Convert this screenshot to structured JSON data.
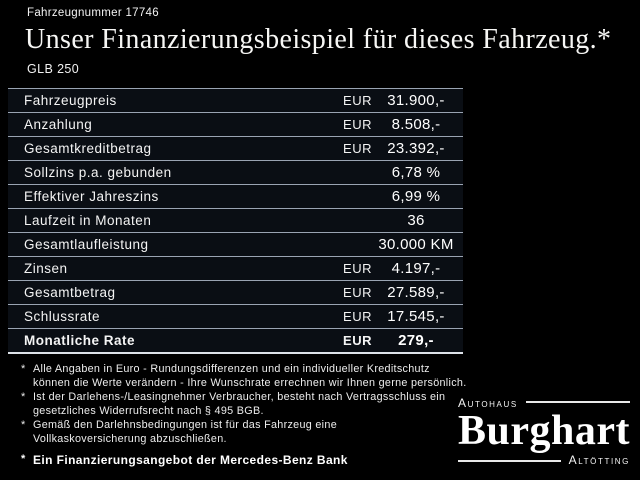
{
  "header": {
    "vehicle_number": "Fahrzeugnummer 17746",
    "title": "Unser Finanzierungsbeispiel für dieses Fahrzeug.*",
    "model": "GLB 250"
  },
  "table": {
    "rows": [
      {
        "label": "Fahrzeugpreis",
        "currency": "EUR",
        "value": "31.900,-"
      },
      {
        "label": "Anzahlung",
        "currency": "EUR",
        "value": "8.508,-"
      },
      {
        "label": "Gesamtkreditbetrag",
        "currency": "EUR",
        "value": "23.392,-"
      },
      {
        "label": "Sollzins p.a. gebunden",
        "currency": "",
        "value": "6,78 %"
      },
      {
        "label": "Effektiver Jahreszins",
        "currency": "",
        "value": "6,99 %"
      },
      {
        "label": "Laufzeit in Monaten",
        "currency": "",
        "value": "36"
      },
      {
        "label": "Gesamtlaufleistung",
        "currency": "",
        "value": "30.000 KM"
      },
      {
        "label": "Zinsen",
        "currency": "EUR",
        "value": "4.197,-"
      },
      {
        "label": "Gesamtbetrag",
        "currency": "EUR",
        "value": "27.589,-"
      },
      {
        "label": "Schlussrate",
        "currency": "EUR",
        "value": "17.545,-"
      },
      {
        "label": "Monatliche Rate",
        "currency": "EUR",
        "value": "279,-"
      }
    ]
  },
  "footnotes": {
    "marker": "*",
    "items": [
      "Alle Angaben in Euro - Rundungsdifferenzen und ein individueller Kreditschutz\nkönnen die Werte verändern - Ihre Wunschrate errechnen wir Ihnen gerne persönlich.",
      "Ist der Darlehens-/Leasingnehmer Verbraucher, besteht nach Vertragsschluss ein\ngesetzliches Widerrufsrecht nach § 495 BGB.",
      "Gemäß den Darlehnsbedingungen ist für das Fahrzeug eine\nVollkaskoversicherung abzuschließen."
    ],
    "bank_note": "Ein Finanzierungsangebot der Mercedes-Benz Bank"
  },
  "dealer_logo": {
    "top_text": "Autohaus",
    "name": "Burghart",
    "bottom_text": "Altötting"
  },
  "colors": {
    "background": "#000000",
    "row_background": "#0a0e14",
    "separator_line": "#9aa4b2",
    "bottom_line": "#dde2e8",
    "text": "#ffffff"
  }
}
